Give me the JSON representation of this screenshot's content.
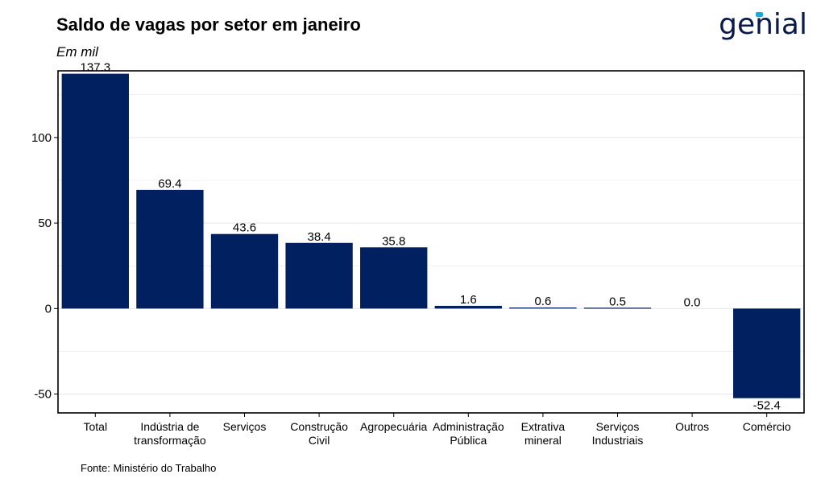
{
  "header": {
    "title": "Saldo de vagas por setor em janeiro",
    "subtitle": "Em mil",
    "logo": "genial"
  },
  "footer": {
    "source": "Fonte: Ministério do Trabalho"
  },
  "colors": {
    "bar": "#002060",
    "grid": "#ebebeb",
    "axis": "#000000"
  },
  "chart_data": {
    "type": "bar",
    "title": "Saldo de vagas por setor em janeiro",
    "subtitle": "Em mil",
    "categories": [
      [
        "Total"
      ],
      [
        "Indústria de",
        "transformação"
      ],
      [
        "Serviços"
      ],
      [
        "Construção",
        "Civil"
      ],
      [
        "Agropecuária"
      ],
      [
        "Administração",
        "Pública"
      ],
      [
        "Extrativa",
        "mineral"
      ],
      [
        "Serviços",
        "Industriais"
      ],
      [
        "Outros"
      ],
      [
        "Comércio"
      ]
    ],
    "values": [
      137.3,
      69.4,
      43.6,
      38.4,
      35.8,
      1.6,
      0.6,
      0.5,
      0.0,
      -52.4
    ],
    "value_labels": [
      "137.3",
      "69.4",
      "43.6",
      "38.4",
      "35.8",
      "1.6",
      "0.6",
      "0.5",
      "0.0",
      "-52.4"
    ],
    "ylim": [
      -61,
      139
    ],
    "yticks": [
      -50,
      0,
      50,
      100
    ],
    "ytick_labels": [
      "-50",
      "0",
      "50",
      "100"
    ],
    "grid": true,
    "legend": "none"
  }
}
